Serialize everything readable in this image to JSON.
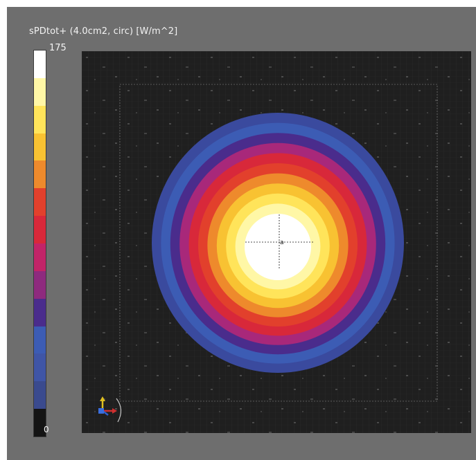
{
  "header": {
    "title": "sPDtot+ (4.0cm2, circ) [W/m^2]"
  },
  "colorbar": {
    "max_label": "175",
    "min_label": "0",
    "colors_top_to_bottom": [
      "#ffffff",
      "#fff7a6",
      "#ffe45a",
      "#f8c232",
      "#ee8a2c",
      "#e2402c",
      "#d8283a",
      "#c22468",
      "#8e2a7e",
      "#4a2c8c",
      "#3c5cb4",
      "#3f55a6",
      "#3a4a8e",
      "#141414"
    ]
  },
  "contour": {
    "levels_outer_to_inner": [
      {
        "value_fraction": 0.14,
        "color": "#3a4a9e"
      },
      {
        "value_fraction": 0.21,
        "color": "#3c5cb4"
      },
      {
        "value_fraction": 0.29,
        "color": "#4a2c8c"
      },
      {
        "value_fraction": 0.36,
        "color": "#a8287a"
      },
      {
        "value_fraction": 0.43,
        "color": "#d8283a"
      },
      {
        "value_fraction": 0.5,
        "color": "#e2402c"
      },
      {
        "value_fraction": 0.57,
        "color": "#ee8a2c"
      },
      {
        "value_fraction": 0.64,
        "color": "#f8c232"
      },
      {
        "value_fraction": 0.71,
        "color": "#ffe45a"
      },
      {
        "value_fraction": 0.79,
        "color": "#fff7a6"
      },
      {
        "value_fraction": 0.93,
        "color": "#ffffff"
      }
    ],
    "peak_marker": "a"
  },
  "icons": {
    "axes": "xyz-axes-gizmo-icon"
  }
}
